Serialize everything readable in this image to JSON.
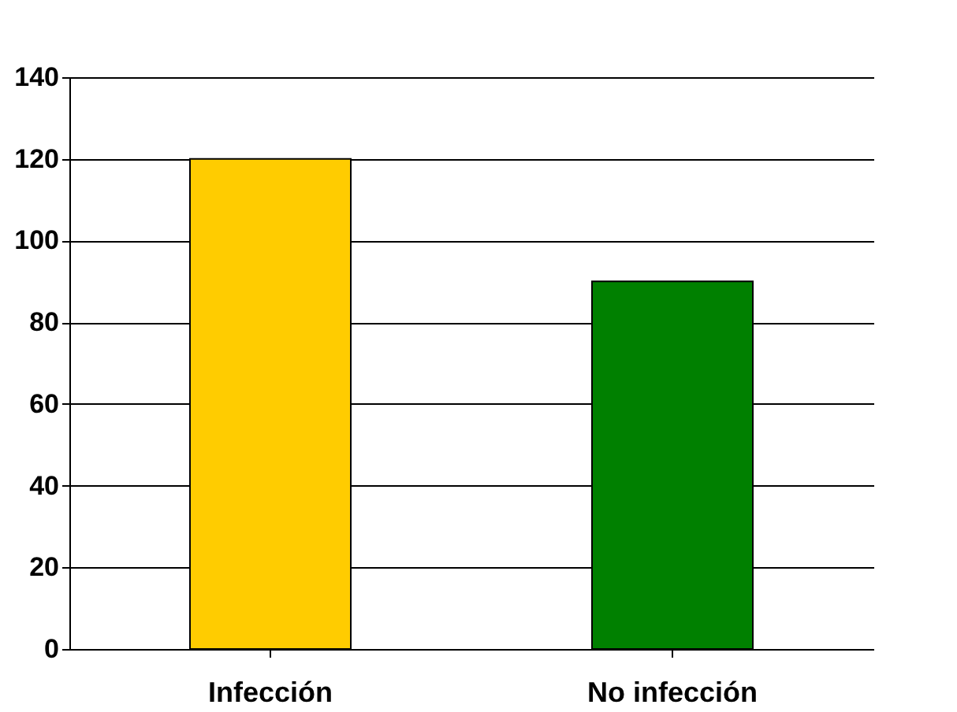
{
  "chart_data": {
    "type": "bar",
    "categories": [
      "Infección",
      "No infección"
    ],
    "values": [
      120,
      90
    ],
    "colors": [
      "#ffcc00",
      "#008000"
    ],
    "ylim": [
      0,
      140
    ],
    "yticks": [
      0,
      20,
      40,
      60,
      80,
      100,
      120,
      140
    ],
    "grid": "y"
  }
}
